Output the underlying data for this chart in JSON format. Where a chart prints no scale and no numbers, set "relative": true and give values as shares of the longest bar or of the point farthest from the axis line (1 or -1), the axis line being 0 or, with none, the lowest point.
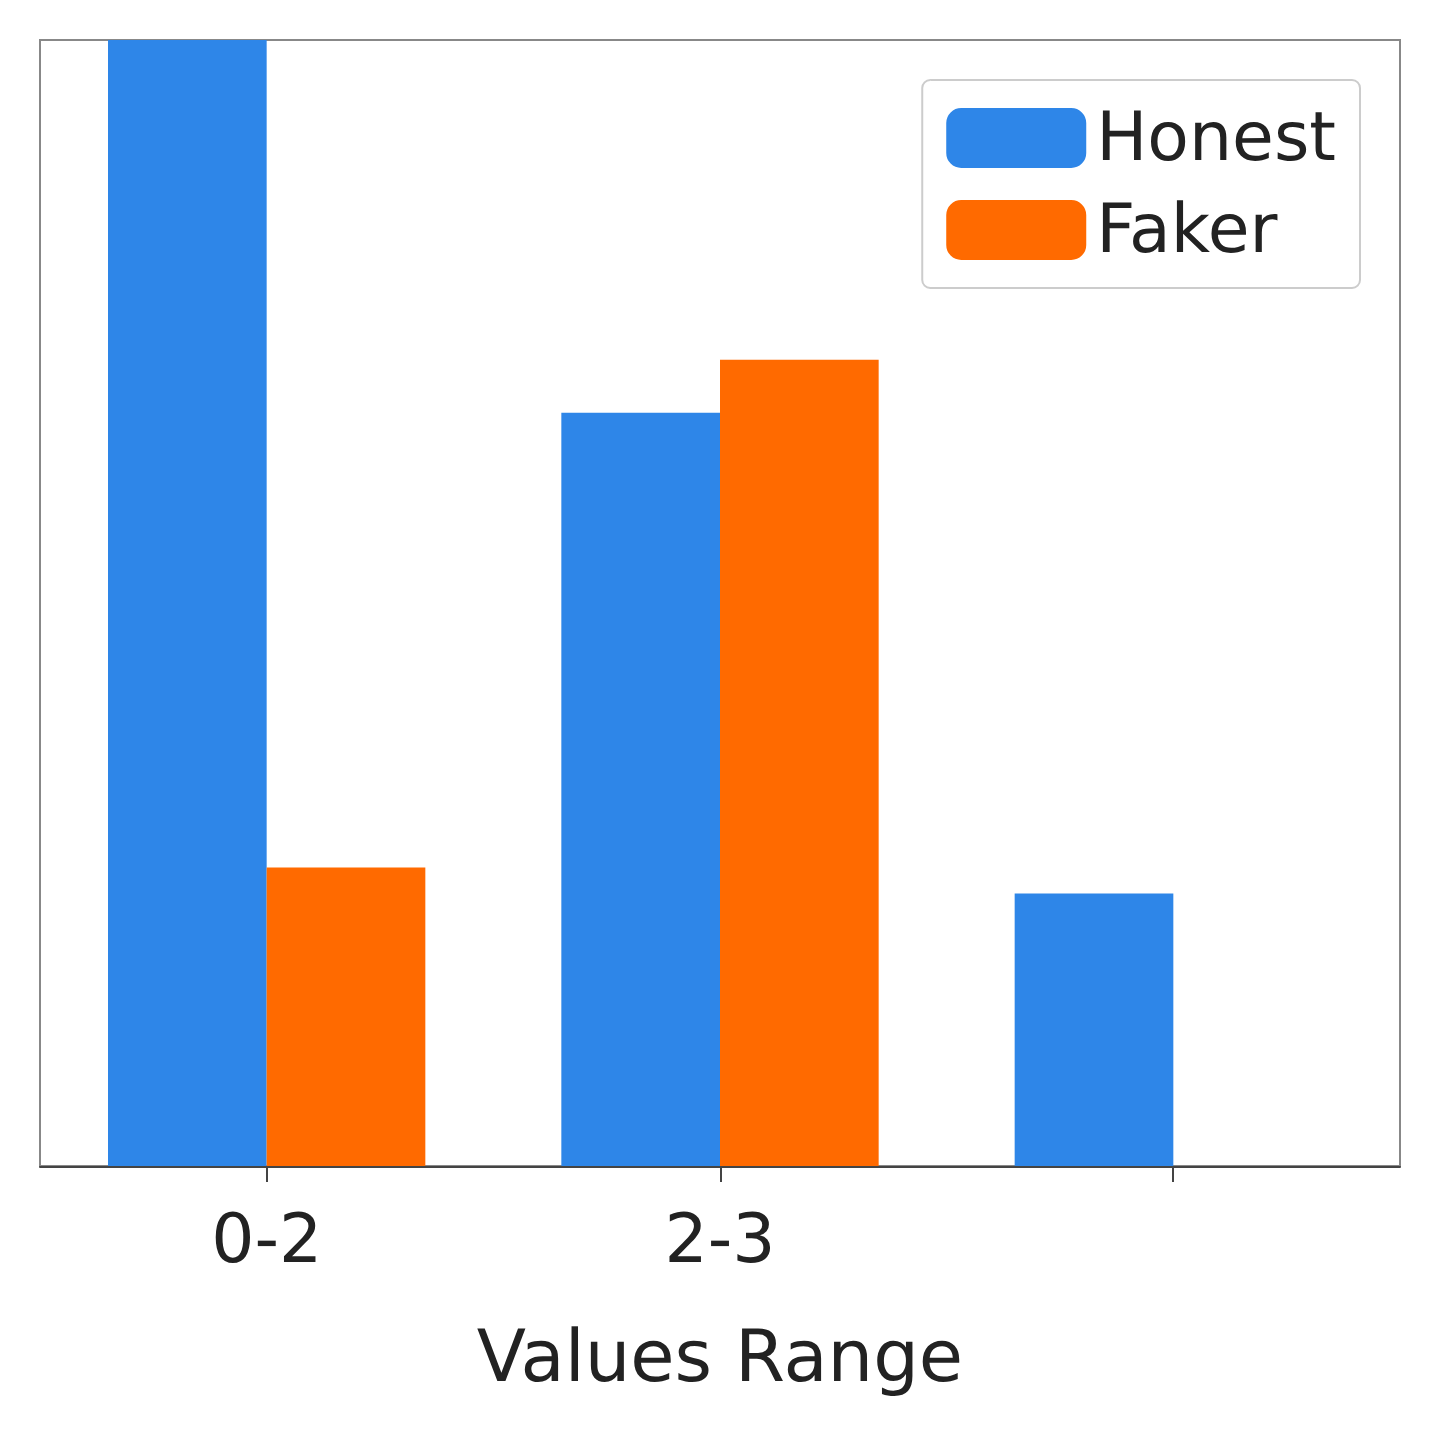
{
  "chart_data": {
    "type": "bar",
    "relative": true,
    "xlabel": "Values Range",
    "categories": [
      "0-2",
      "2-3",
      null
    ],
    "series": [
      {
        "name": "Honest",
        "color": "#2e86e8",
        "values": [
          1,
          0.669,
          0.242
        ]
      },
      {
        "name": "Faker",
        "color": "#ff6a00",
        "values": [
          0.265,
          0.716,
          null
        ]
      }
    ],
    "legend": "top right",
    "grid": false
  }
}
